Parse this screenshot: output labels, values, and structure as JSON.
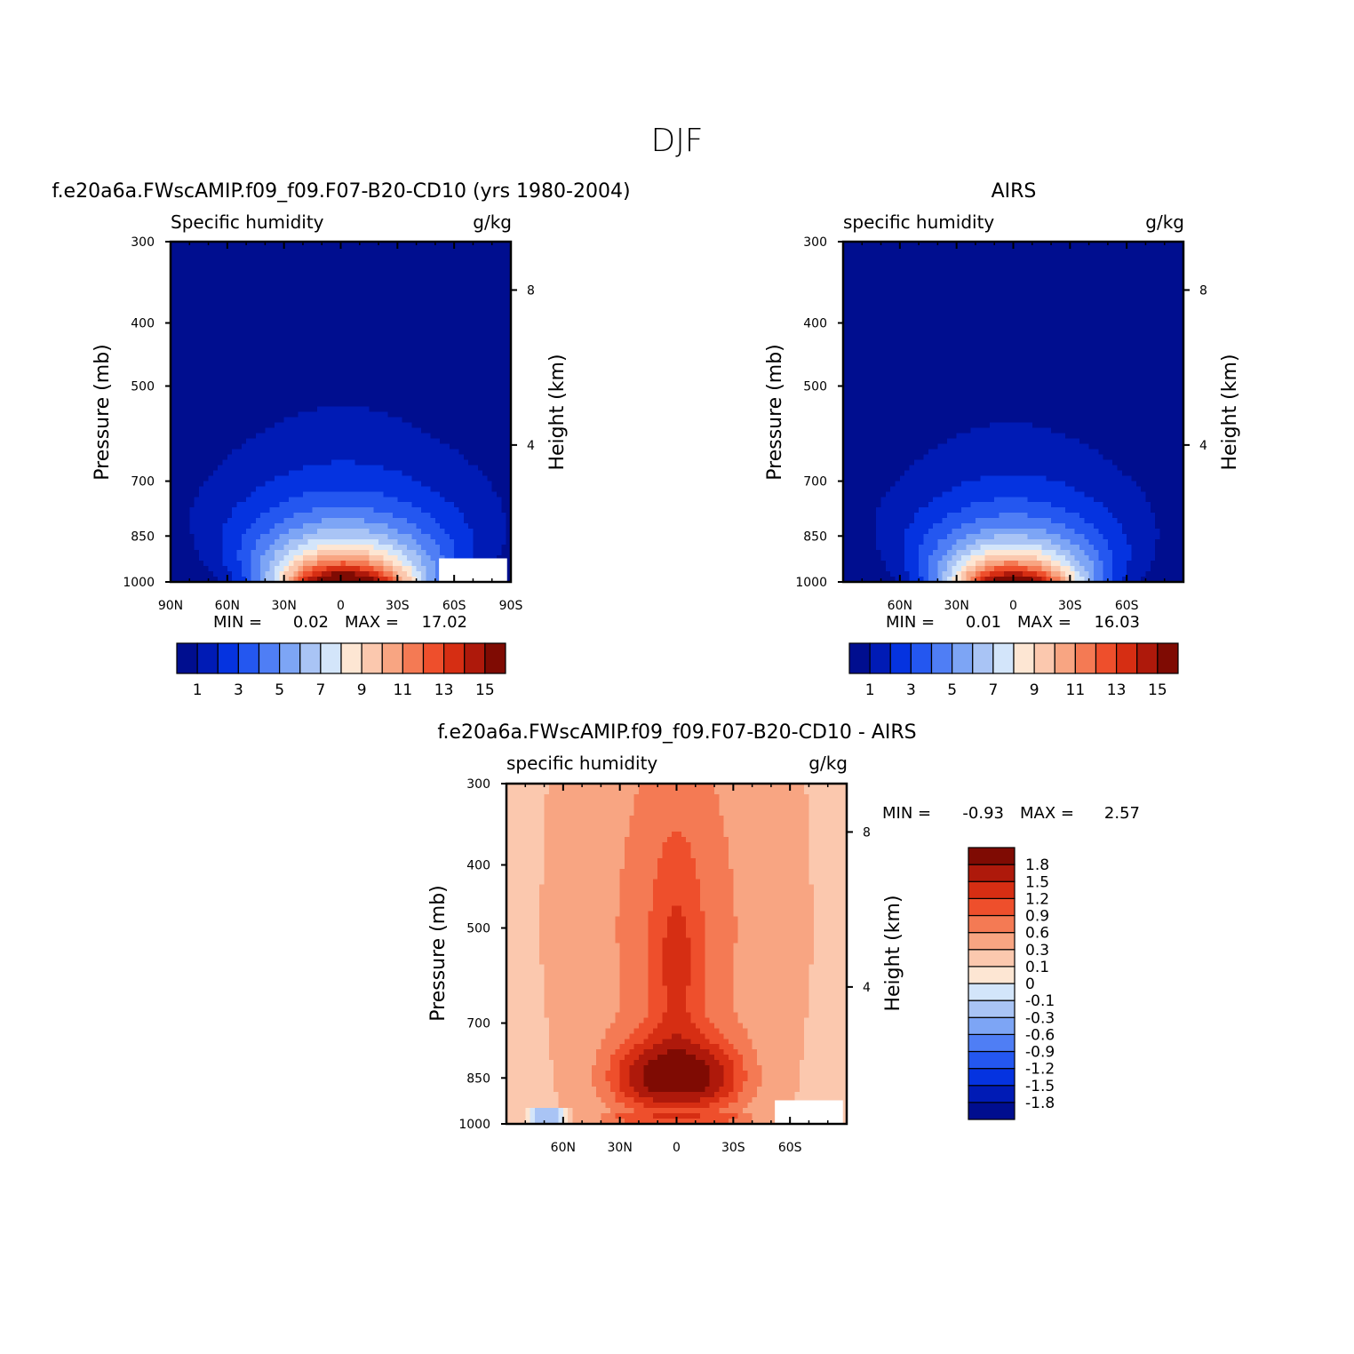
{
  "figure": {
    "title": "DJF"
  },
  "colors": {
    "abs_palette": [
      "#000e8f",
      "#001bb5",
      "#0533e0",
      "#2457f0",
      "#4f7ef5",
      "#7da5f5",
      "#a9c4f5",
      "#d3e5fa",
      "#fde6d3",
      "#fbc8ae",
      "#f8a582",
      "#f47a54",
      "#ee4f2c",
      "#d62e13",
      "#ae190b",
      "#7f0b03"
    ],
    "diff_palette": [
      "#000e8f",
      "#001bb5",
      "#0533e0",
      "#2457f0",
      "#4f7ef5",
      "#7da5f5",
      "#a9c4f5",
      "#d3e5fa",
      "#fde6d3",
      "#fbc8ae",
      "#f8a582",
      "#f47a54",
      "#ee4f2c",
      "#d62e13",
      "#ae190b",
      "#7f0b03"
    ],
    "missing": "#ffffff"
  },
  "chart_data": [
    {
      "type": "contour",
      "id": "model",
      "title": "f.e20a6a.FWscAMIP.f09_f09.F07-B20-CD10 (yrs 1980-2004)",
      "left_string": "Specific humidity",
      "right_string": "g/kg",
      "xlabel": "",
      "ylabel": "Pressure (mb)",
      "y2label": "Height (km)",
      "x_ticks": [
        {
          "lat": 90,
          "label": "90N"
        },
        {
          "lat": 60,
          "label": "60N"
        },
        {
          "lat": 30,
          "label": "30N"
        },
        {
          "lat": 0,
          "label": "0"
        },
        {
          "lat": -30,
          "label": "30S"
        },
        {
          "lat": -60,
          "label": "60S"
        },
        {
          "lat": -90,
          "label": "90S"
        }
      ],
      "xlim": [
        90,
        -90
      ],
      "y_ticks": [
        {
          "p": 300,
          "label": "300"
        },
        {
          "p": 400,
          "label": "400"
        },
        {
          "p": 500,
          "label": "500"
        },
        {
          "p": 700,
          "label": "700"
        },
        {
          "p": 850,
          "label": "850"
        },
        {
          "p": 1000,
          "label": "1000"
        }
      ],
      "ylim": [
        1000,
        300
      ],
      "y2_ticks": [
        {
          "p": 356,
          "label": "8"
        },
        {
          "p": 616,
          "label": "4"
        }
      ],
      "stats": {
        "min_label": "MIN =",
        "min": "0.02",
        "max_label": "MAX =",
        "max": "17.02"
      },
      "field": {
        "peak": 17.0,
        "center_lat": -1,
        "width_base": 26,
        "decay_p": 145,
        "skew": 0.6,
        "width_growth": 0.0
      },
      "levels": [
        1,
        2,
        3,
        4,
        5,
        6,
        7,
        8,
        9,
        10,
        11,
        12,
        13,
        14,
        15
      ],
      "colorbar": {
        "labels": [
          "1",
          "3",
          "5",
          "7",
          "9",
          "11",
          "13",
          "15"
        ]
      },
      "missing_boxes": [
        {
          "lat0": -52,
          "lat1": -88,
          "p0": 920,
          "p1": 1000
        }
      ]
    },
    {
      "type": "contour",
      "id": "obs",
      "title": "AIRS",
      "left_string": "specific humidity",
      "right_string": "g/kg",
      "xlabel": "",
      "ylabel": "Pressure (mb)",
      "y2label": "Height (km)",
      "x_ticks": [
        {
          "lat": 60,
          "label": "60N"
        },
        {
          "lat": 30,
          "label": "30N"
        },
        {
          "lat": 0,
          "label": "0"
        },
        {
          "lat": -30,
          "label": "30S"
        },
        {
          "lat": -60,
          "label": "60S"
        }
      ],
      "xlim": [
        90,
        -90
      ],
      "y_ticks": [
        {
          "p": 300,
          "label": "300"
        },
        {
          "p": 400,
          "label": "400"
        },
        {
          "p": 500,
          "label": "500"
        },
        {
          "p": 700,
          "label": "700"
        },
        {
          "p": 850,
          "label": "850"
        },
        {
          "p": 1000,
          "label": "1000"
        }
      ],
      "ylim": [
        1000,
        300
      ],
      "y2_ticks": [
        {
          "p": 356,
          "label": "8"
        },
        {
          "p": 616,
          "label": "4"
        }
      ],
      "stats": {
        "min_label": "MIN =",
        "min": "0.01",
        "max_label": "MAX =",
        "max": "16.03"
      },
      "field": {
        "peak": 16.0,
        "center_lat": 1,
        "width_base": 24,
        "decay_p": 135,
        "skew": 0.55,
        "width_growth": 0.0
      },
      "levels": [
        1,
        2,
        3,
        4,
        5,
        6,
        7,
        8,
        9,
        10,
        11,
        12,
        13,
        14,
        15
      ],
      "colorbar": {
        "labels": [
          "1",
          "3",
          "5",
          "7",
          "9",
          "11",
          "13",
          "15"
        ]
      },
      "missing_boxes": []
    },
    {
      "type": "contour",
      "id": "diff",
      "title": "f.e20a6a.FWscAMIP.f09_f09.F07-B20-CD10 - AIRS",
      "left_string": "specific humidity",
      "right_string": "g/kg",
      "xlabel": "",
      "ylabel": "Pressure (mb)",
      "y2label": "Height (km)",
      "x_ticks": [
        {
          "lat": 60,
          "label": "60N"
        },
        {
          "lat": 30,
          "label": "30N"
        },
        {
          "lat": 0,
          "label": "0"
        },
        {
          "lat": -30,
          "label": "30S"
        },
        {
          "lat": -60,
          "label": "60S"
        }
      ],
      "xlim": [
        90,
        -90
      ],
      "y_ticks": [
        {
          "p": 300,
          "label": "300"
        },
        {
          "p": 400,
          "label": "400"
        },
        {
          "p": 500,
          "label": "500"
        },
        {
          "p": 700,
          "label": "700"
        },
        {
          "p": 850,
          "label": "850"
        },
        {
          "p": 1000,
          "label": "1000"
        }
      ],
      "ylim": [
        1000,
        300
      ],
      "y2_ticks": [
        {
          "p": 356,
          "label": "8"
        },
        {
          "p": 616,
          "label": "4"
        }
      ],
      "stats": {
        "min_label": "MIN =",
        "min": "-0.93",
        "max_label": "MAX =",
        "max": "2.57"
      },
      "levels": [
        -1.8,
        -1.5,
        -1.2,
        -0.9,
        -0.6,
        -0.3,
        -0.1,
        0,
        0.1,
        0.3,
        0.6,
        0.9,
        1.2,
        1.5,
        1.8
      ],
      "colorbar": {
        "labels": [
          "1.8",
          "1.5",
          "1.2",
          "0.9",
          "0.6",
          "0.3",
          "0.1",
          "0",
          "-0.1",
          "-0.3",
          "-0.6",
          "-0.9",
          "-1.2",
          "-1.5",
          "-1.8"
        ]
      },
      "missing_boxes": [
        {
          "lat0": -52,
          "lat1": -88,
          "p0": 920,
          "p1": 1000
        }
      ]
    }
  ]
}
